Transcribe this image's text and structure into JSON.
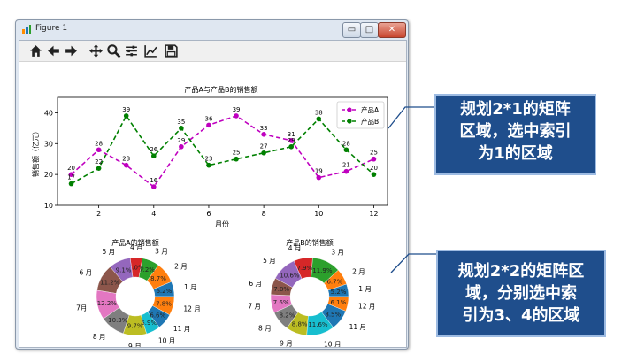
{
  "window": {
    "title": "Figure 1",
    "buttons": {
      "minimize": "▭",
      "maximize": "□",
      "close": "✕"
    }
  },
  "toolbar": {
    "tools": [
      "home-icon",
      "back-arrow-icon",
      "forward-arrow-icon",
      "pan-icon",
      "zoom-icon",
      "configure-subplots-icon",
      "edit-axis-icon",
      "save-icon"
    ]
  },
  "callouts": {
    "top": [
      "规划2*1的矩阵",
      "区域，选中索引",
      "为1的区域"
    ],
    "bottom": [
      "规划2*2的矩阵区",
      "域，分别选中索",
      "引为3、4的区域"
    ]
  },
  "colors": {
    "seriesA": "#bf00bf",
    "seriesB": "#008000",
    "callout_bg": "#1f4e8c",
    "pie": [
      "#1f77b4",
      "#ff7f0e",
      "#2ca02c",
      "#d62728",
      "#9467bd",
      "#8c564b",
      "#e377c2",
      "#7f7f7f",
      "#bcbd22",
      "#17becf",
      "#1f77b4",
      "#ff7f0e"
    ]
  },
  "chart_data": [
    {
      "type": "line",
      "title": "产品A与产品B的销售额",
      "xlabel": "月份",
      "ylabel": "销售额（亿元）",
      "x": [
        1,
        2,
        3,
        4,
        5,
        6,
        7,
        8,
        9,
        10,
        11,
        12
      ],
      "xticks": [
        2,
        4,
        6,
        8,
        10,
        12
      ],
      "yticks": [
        10,
        20,
        30,
        40
      ],
      "xlim": [
        0.5,
        12.5
      ],
      "ylim": [
        10,
        45
      ],
      "legend": "top-right",
      "series": [
        {
          "name": "产品A",
          "values": [
            20,
            28,
            23,
            16,
            29,
            36,
            39,
            33,
            31,
            19,
            21,
            25
          ],
          "style": "dashed",
          "marker": "circle"
        },
        {
          "name": "产品B",
          "values": [
            17,
            22,
            39,
            26,
            35,
            23,
            25,
            27,
            29,
            38,
            28,
            20
          ],
          "style": "dashed",
          "marker": "circle"
        }
      ]
    },
    {
      "type": "pie",
      "donut": true,
      "title": "产品A的销售额",
      "labels": [
        "1 月",
        "2 月",
        "3 月",
        "4 月",
        "5 月",
        "6 月",
        "7月",
        "8 月",
        "9 月",
        "10 月",
        "11 月",
        "12 月"
      ],
      "values": [
        6.2,
        8.7,
        7.2,
        5.0,
        9.1,
        11.2,
        12.2,
        10.3,
        9.7,
        5.9,
        6.6,
        7.8
      ],
      "value_labels": [
        "6.2%",
        "8.7%",
        "7.2%",
        "5.0%",
        "9.1%",
        "11.2%",
        "12.2%",
        "10.3%",
        "9.7%",
        "5.9%",
        "6.6%",
        "7.8%"
      ]
    },
    {
      "type": "pie",
      "donut": true,
      "title": "产品B的销售额",
      "labels": [
        "1 月",
        "2 月",
        "3 月",
        "4 月",
        "5 月",
        "6 月",
        "7 月",
        "8 月",
        "9 月",
        "10 月",
        "11 月",
        "12 月"
      ],
      "values": [
        5.2,
        6.7,
        11.9,
        7.9,
        10.6,
        7.0,
        7.6,
        8.2,
        8.8,
        11.6,
        8.5,
        6.1
      ],
      "value_labels": [
        "5.2%",
        "6.7%",
        "11.9%",
        "7.9%",
        "10.6%",
        "7.0%",
        "7.6%",
        "8.2%",
        "8.8%",
        "11.6%",
        "8.5%",
        "6.1%"
      ]
    }
  ]
}
